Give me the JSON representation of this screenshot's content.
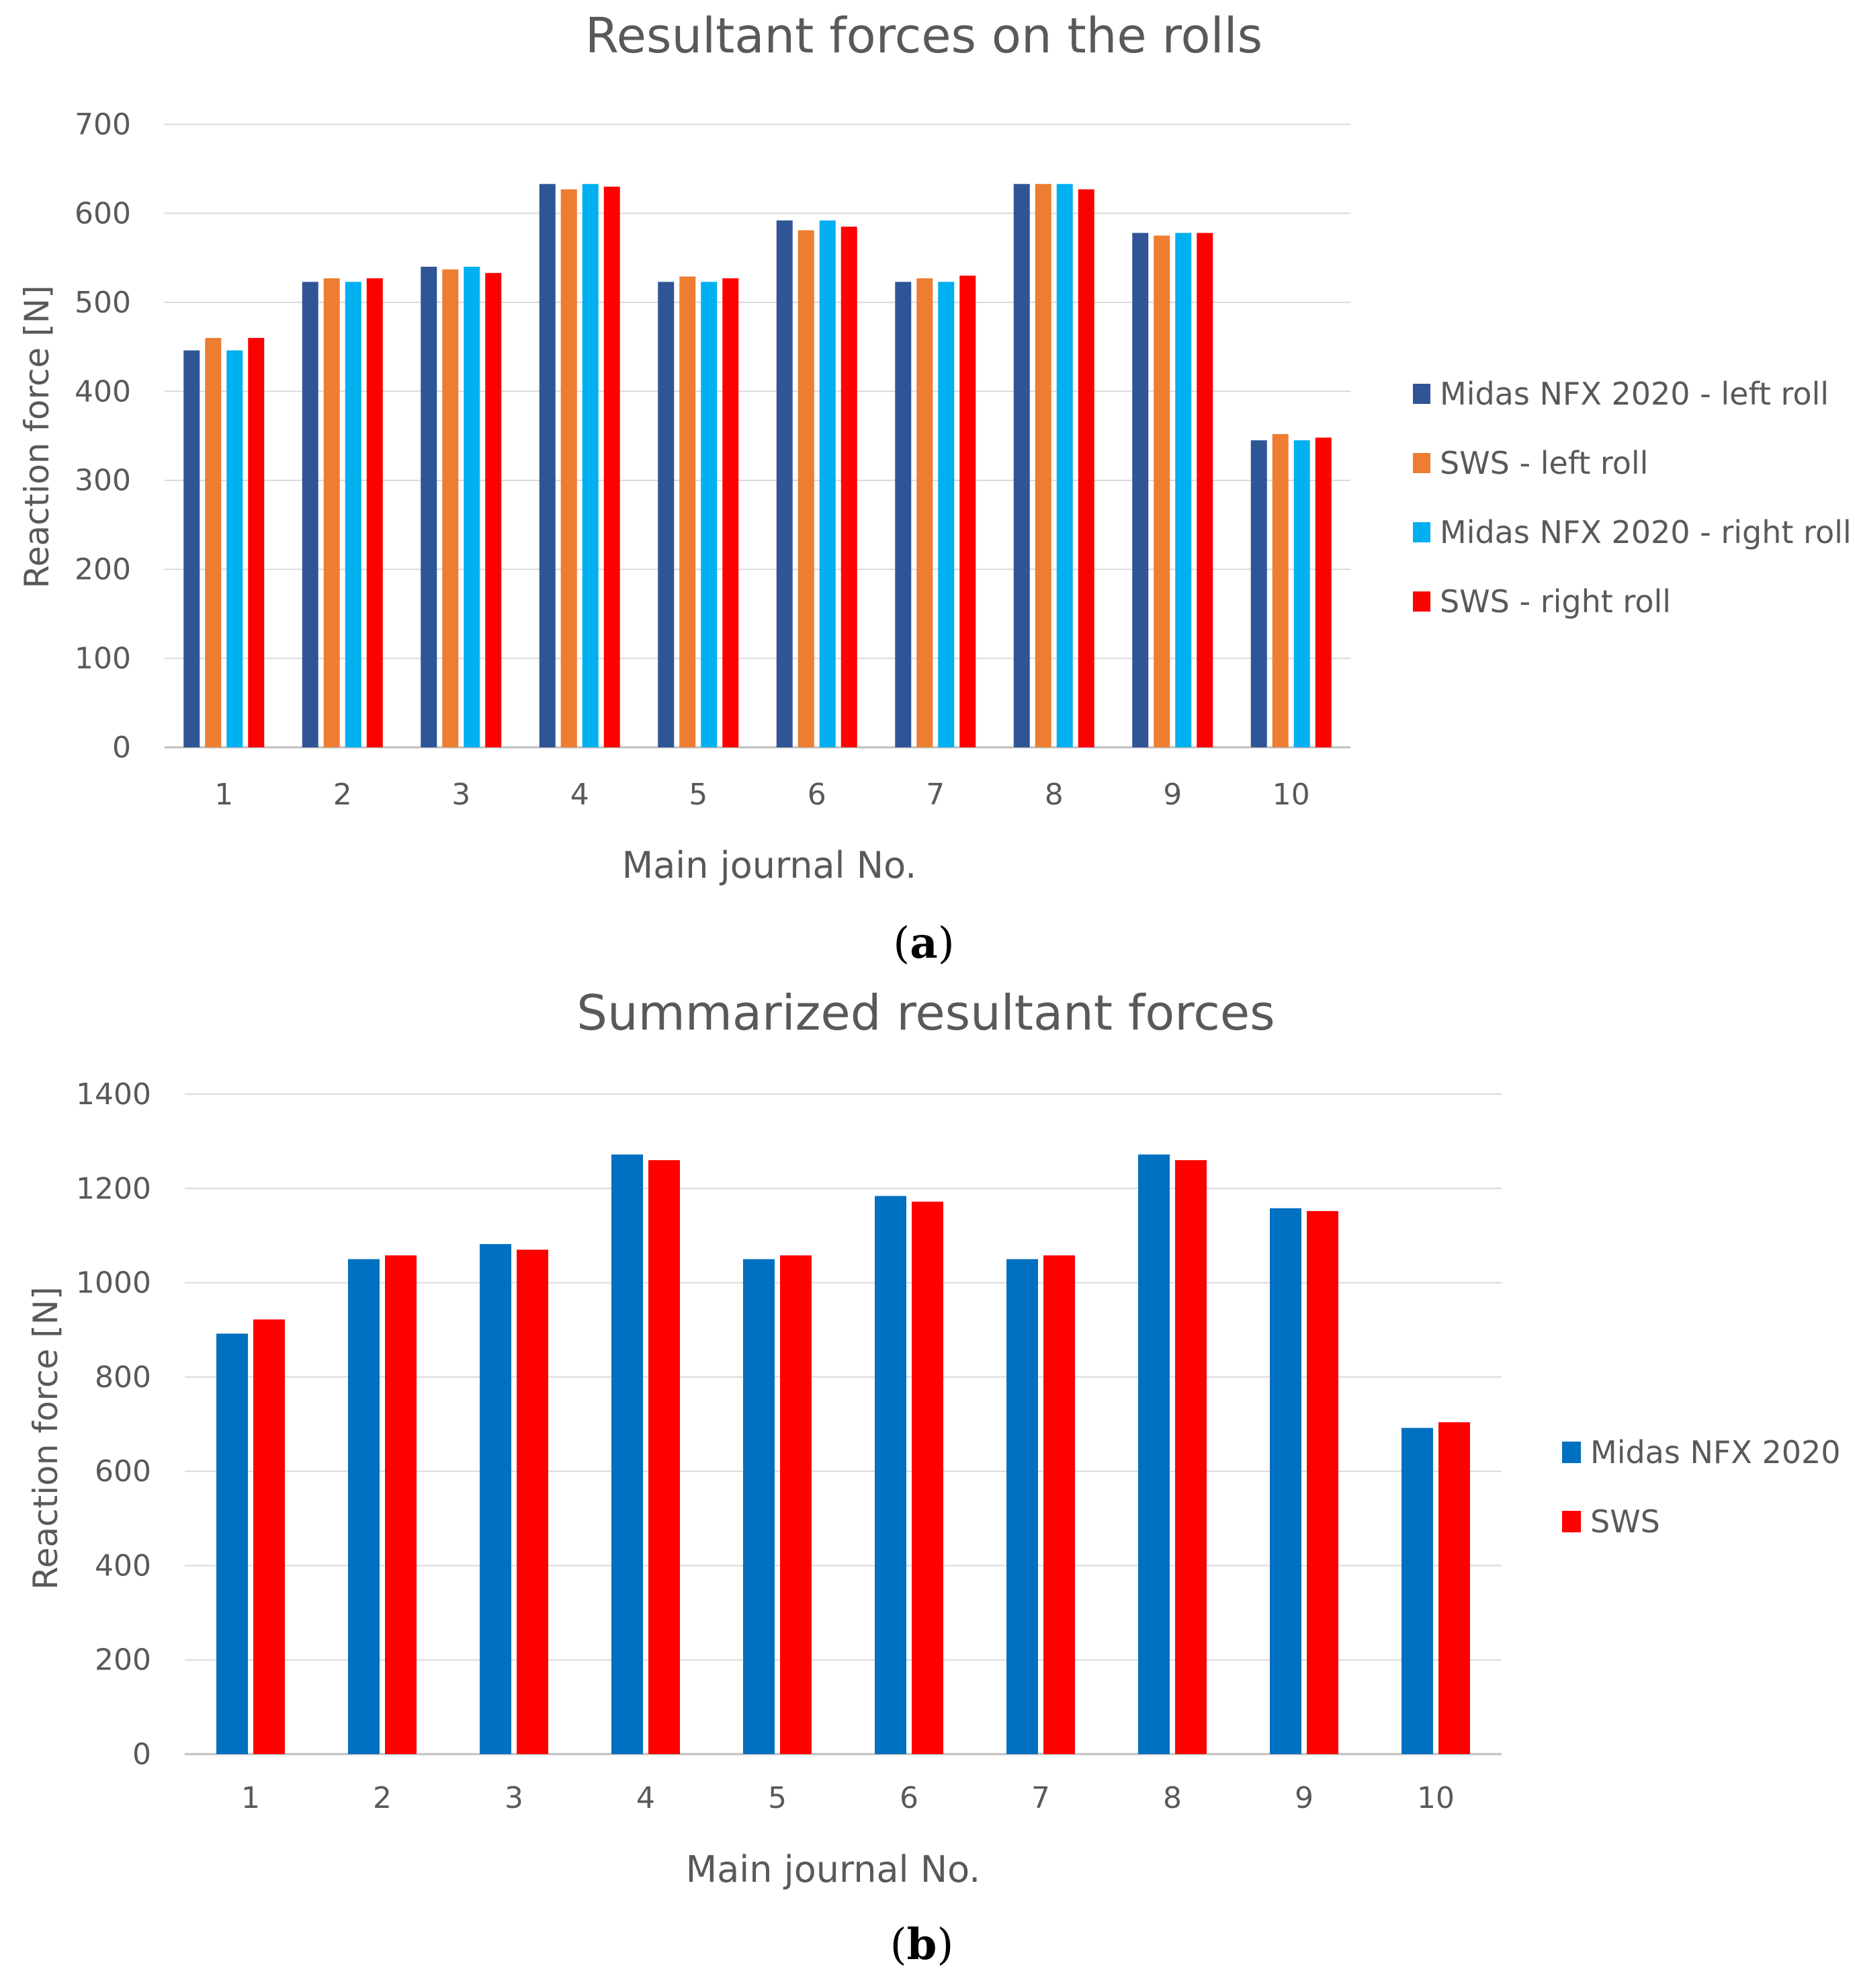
{
  "chart_data": [
    {
      "type": "bar",
      "title": "Resultant forces on the rolls",
      "xlabel": "Main journal No.",
      "ylabel": "Reaction force [N]",
      "ylim": [
        0,
        700
      ],
      "yticks": [
        0,
        100,
        200,
        300,
        400,
        500,
        600,
        700
      ],
      "grid": true,
      "legend_position": "right",
      "categories": [
        "1",
        "2",
        "3",
        "4",
        "5",
        "6",
        "7",
        "8",
        "9",
        "10"
      ],
      "series": [
        {
          "name": "Midas NFX 2020 - left roll",
          "color": "#2F5597",
          "values": [
            446,
            523,
            540,
            633,
            523,
            592,
            523,
            633,
            578,
            345
          ]
        },
        {
          "name": "SWS - left roll",
          "color": "#ED7D31",
          "values": [
            460,
            527,
            537,
            627,
            529,
            581,
            527,
            633,
            575,
            352
          ]
        },
        {
          "name": "Midas NFX 2020 - right roll",
          "color": "#00B0F0",
          "values": [
            446,
            523,
            540,
            633,
            523,
            592,
            523,
            633,
            578,
            345
          ]
        },
        {
          "name": "SWS - right roll",
          "color": "#FF0000",
          "values": [
            460,
            527,
            533,
            630,
            527,
            585,
            530,
            627,
            578,
            348
          ]
        }
      ],
      "caption_letter": "a"
    },
    {
      "type": "bar",
      "title": "Summarized resultant forces",
      "xlabel": "Main journal No.",
      "ylabel": "Reaction force [N]",
      "ylim": [
        0,
        1400
      ],
      "yticks": [
        0,
        200,
        400,
        600,
        800,
        1000,
        1200,
        1400
      ],
      "grid": true,
      "legend_position": "right",
      "categories": [
        "1",
        "2",
        "3",
        "4",
        "5",
        "6",
        "7",
        "8",
        "9",
        "10"
      ],
      "series": [
        {
          "name": "Midas NFX 2020",
          "color": "#0070C0",
          "values": [
            892,
            1050,
            1082,
            1272,
            1050,
            1184,
            1050,
            1272,
            1158,
            692
          ]
        },
        {
          "name": "SWS",
          "color": "#FF0000",
          "values": [
            922,
            1058,
            1070,
            1260,
            1058,
            1172,
            1058,
            1260,
            1152,
            704
          ]
        }
      ],
      "caption_letter": "b"
    }
  ]
}
